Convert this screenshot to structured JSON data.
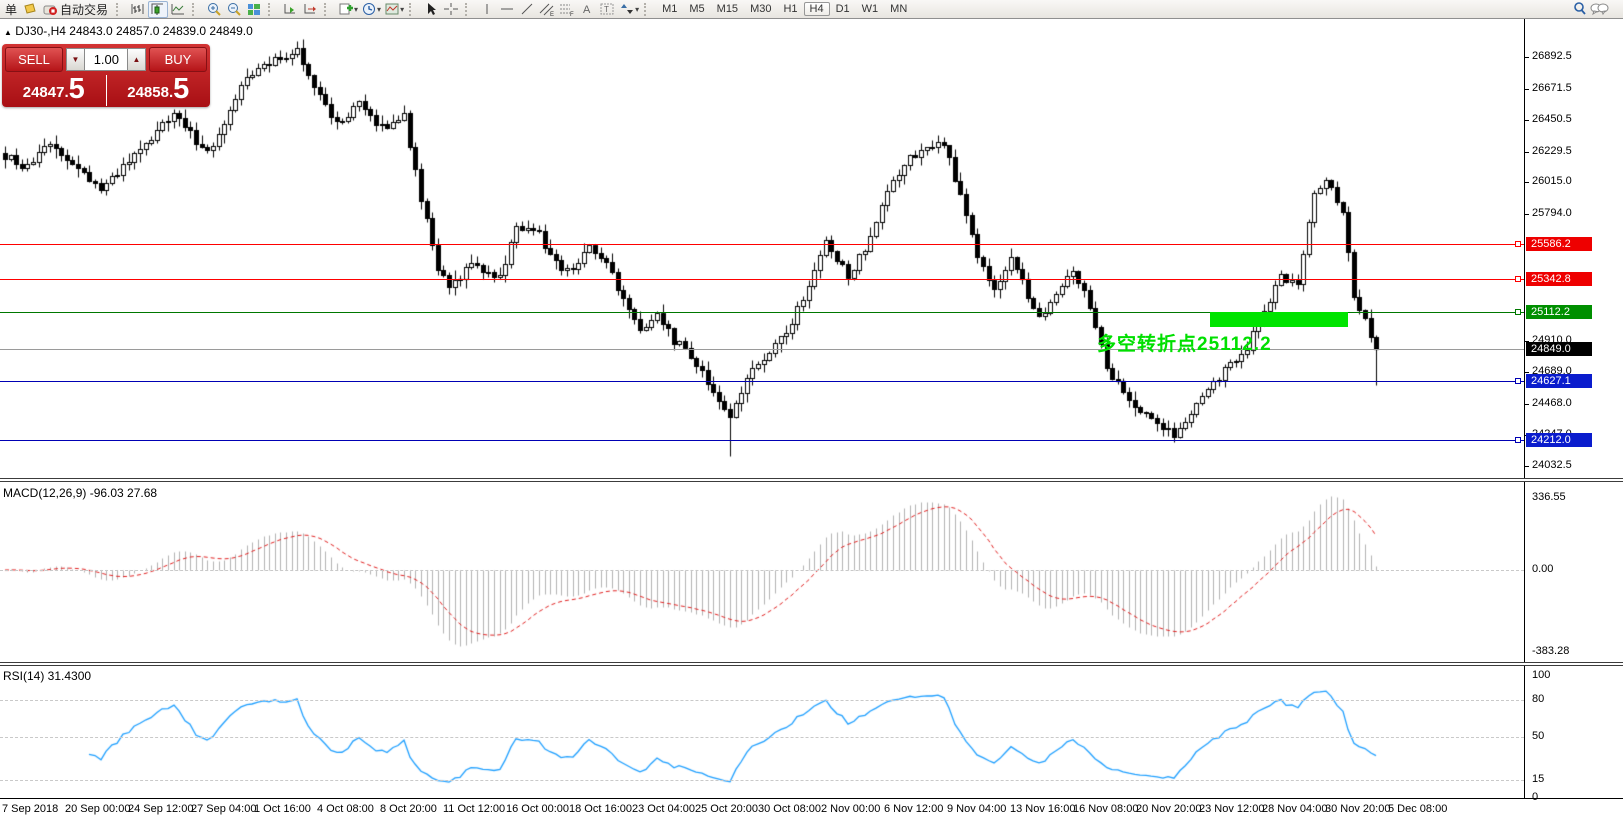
{
  "toolbar": {
    "left_text": "单",
    "autotrading_label": "自动交易",
    "timeframes": [
      "M1",
      "M5",
      "M15",
      "M30",
      "H1",
      "H4",
      "D1",
      "W1",
      "MN"
    ],
    "active_timeframe": "H4"
  },
  "chart": {
    "title_symbol": "DJ30-,H4",
    "ohlc_line": "24843.0 24857.0 24839.0 24849.0"
  },
  "trade_panel": {
    "sell_label": "SELL",
    "buy_label": "BUY",
    "volume": "1.00",
    "sell_price": "24847.5",
    "buy_price": "24858.5",
    "sell_small": "24847.",
    "sell_big": "5",
    "buy_small": "24858.",
    "buy_big": "5"
  },
  "annotation": {
    "text": "多空转折点25112.2",
    "color": "#00DF00",
    "rect_color": "#00E400"
  },
  "levels": [
    {
      "price": 25586.2,
      "label": "25586.2",
      "line": "#ff0000",
      "badge": "#ee0000",
      "marker": true
    },
    {
      "price": 25342.8,
      "label": "25342.8",
      "line": "#ff0000",
      "badge": "#ee0000",
      "marker": true
    },
    {
      "price": 25112.2,
      "label": "25112.2",
      "line": "#007800",
      "badge": "#008f00",
      "marker": true
    },
    {
      "price": 24849.0,
      "label": "24849.0",
      "line": "#9a9a9a",
      "badge": "#000000",
      "marker": false
    },
    {
      "price": 24627.1,
      "label": "24627.1",
      "line": "#0000b4",
      "badge": "#0a1ccd",
      "marker": true
    },
    {
      "price": 24212.0,
      "label": "24212.0",
      "line": "#0000b4",
      "badge": "#0a1ccd",
      "marker": true
    }
  ],
  "indicators": {
    "macd_label": "MACD(12,26,9) -96.03 27.68",
    "rsi_label": "RSI(14) 31.4300"
  },
  "colors": {
    "candle": "#000000",
    "macd_hist": "#b2b2b2",
    "macd_signal": "#e02020",
    "rsi_line": "#1e9fff",
    "panel_red": "#b01418"
  },
  "chart_data": {
    "type": "candlestick",
    "symbol": "DJ30-",
    "timeframe": "H4",
    "current_ohlc": {
      "open": 24843.0,
      "high": 24857.0,
      "low": 24839.0,
      "close": 24849.0
    },
    "price_axis": {
      "max": 26892.5,
      "min": 24032.5,
      "ticks": [
        26892.5,
        26671.5,
        26450.5,
        26229.5,
        26015.0,
        25794.0,
        24910.0,
        24689.0,
        24468.0,
        24247.0,
        24032.5
      ]
    },
    "candle_count": 245,
    "close_waypoints": [
      [
        0,
        26200
      ],
      [
        4,
        26120
      ],
      [
        8,
        26280
      ],
      [
        12,
        26150
      ],
      [
        17,
        25960
      ],
      [
        23,
        26200
      ],
      [
        30,
        26500
      ],
      [
        36,
        26220
      ],
      [
        43,
        26750
      ],
      [
        47,
        26850
      ],
      [
        52,
        26950
      ],
      [
        55,
        26700
      ],
      [
        59,
        26420
      ],
      [
        63,
        26560
      ],
      [
        67,
        26400
      ],
      [
        71,
        26480
      ],
      [
        74,
        25900
      ],
      [
        77,
        25420
      ],
      [
        79,
        25260
      ],
      [
        83,
        25460
      ],
      [
        88,
        25350
      ],
      [
        91,
        25700
      ],
      [
        95,
        25660
      ],
      [
        97,
        25500
      ],
      [
        100,
        25390
      ],
      [
        104,
        25560
      ],
      [
        107,
        25450
      ],
      [
        110,
        25200
      ],
      [
        113,
        24960
      ],
      [
        116,
        25120
      ],
      [
        119,
        24900
      ],
      [
        121,
        24860
      ],
      [
        125,
        24620
      ],
      [
        129,
        24380
      ],
      [
        132,
        24650
      ],
      [
        136,
        24820
      ],
      [
        139,
        24960
      ],
      [
        143,
        25300
      ],
      [
        146,
        25600
      ],
      [
        150,
        25360
      ],
      [
        154,
        25620
      ],
      [
        157,
        25950
      ],
      [
        161,
        26200
      ],
      [
        164,
        26250
      ],
      [
        167,
        26300
      ],
      [
        171,
        25800
      ],
      [
        173,
        25480
      ],
      [
        176,
        25260
      ],
      [
        179,
        25500
      ],
      [
        184,
        25060
      ],
      [
        187,
        25260
      ],
      [
        190,
        25420
      ],
      [
        193,
        25160
      ],
      [
        196,
        24720
      ],
      [
        200,
        24500
      ],
      [
        204,
        24360
      ],
      [
        208,
        24260
      ],
      [
        211,
        24420
      ],
      [
        214,
        24560
      ],
      [
        218,
        24760
      ],
      [
        221,
        24860
      ],
      [
        223,
        25060
      ],
      [
        227,
        25350
      ],
      [
        230,
        25290
      ],
      [
        233,
        25950
      ],
      [
        235,
        26060
      ],
      [
        238,
        25820
      ],
      [
        240,
        25220
      ],
      [
        242,
        25080
      ],
      [
        244,
        24849
      ]
    ],
    "forced_points": {
      "deep_low_index": 129,
      "deep_low": 24100,
      "last_low": 24600,
      "last_close": 24849
    },
    "horizontal_levels": [
      {
        "price": 25586.2,
        "color": "red"
      },
      {
        "price": 25342.8,
        "color": "red"
      },
      {
        "price": 25112.2,
        "color": "green",
        "note": "多空转折点 (bull/bear turning point)"
      },
      {
        "price": 24849.0,
        "color": "gray",
        "type": "current-price"
      },
      {
        "price": 24627.1,
        "color": "blue"
      },
      {
        "price": 24212.0,
        "color": "blue"
      }
    ],
    "indicators": [
      {
        "name": "MACD",
        "params": [
          12,
          26,
          9
        ],
        "current_macd": -96.03,
        "current_signal": 27.68,
        "axis_ticks": [
          336.55,
          0.0,
          -383.28
        ]
      },
      {
        "name": "RSI",
        "params": [
          14
        ],
        "current": 31.43,
        "axis_ticks": [
          100,
          80,
          50,
          15,
          0
        ],
        "level_lines": [
          80,
          50,
          15
        ]
      }
    ],
    "x_axis_dates": [
      "7 Sep 2018",
      "20 Sep 00:00",
      "24 Sep 12:00",
      "27 Sep 04:00",
      "1 Oct 16:00",
      "4 Oct 08:00",
      "8 Oct 20:00",
      "11 Oct 12:00",
      "16 Oct 00:00",
      "18 Oct 16:00",
      "23 Oct 04:00",
      "25 Oct 20:00",
      "30 Oct 08:00",
      "2 Nov 00:00",
      "6 Nov 12:00",
      "9 Nov 04:00",
      "13 Nov 16:00",
      "16 Nov 08:00",
      "20 Nov 20:00",
      "23 Nov 12:00",
      "28 Nov 04:00",
      "30 Nov 20:00",
      "5 Dec 08:00"
    ]
  }
}
